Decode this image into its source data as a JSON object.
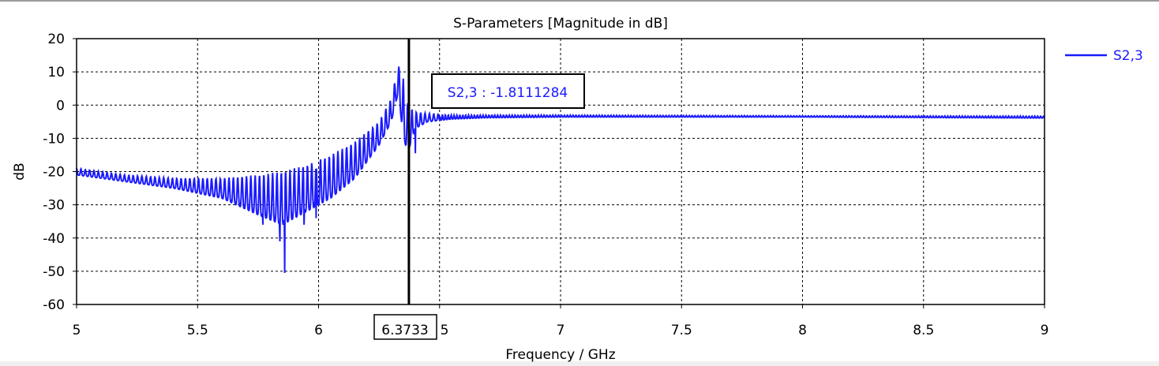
{
  "chart_data": {
    "type": "line",
    "title": "S-Parameters [Magnitude in dB]",
    "xlabel": "Frequency / GHz",
    "ylabel": "dB",
    "xlim": [
      5,
      9
    ],
    "ylim": [
      -60,
      20
    ],
    "xticks": [
      5,
      5.5,
      6,
      6.5,
      7,
      7.5,
      8,
      8.5,
      9
    ],
    "xtick_labels": [
      "5",
      "5.5",
      "6",
      "",
      "7",
      "7.5",
      "8",
      "8.5",
      "9"
    ],
    "yticks": [
      -60,
      -50,
      -40,
      -30,
      -20,
      -10,
      0,
      10,
      20
    ],
    "grid": true,
    "legend": {
      "position": "top-right",
      "entries": [
        "S2,3"
      ]
    },
    "series": [
      {
        "name": "S2,3",
        "color": "#1a1aff",
        "envelope_x": [
          5.0,
          5.2,
          5.4,
          5.6,
          5.75,
          5.85,
          5.95,
          6.05,
          6.15,
          6.25,
          6.3,
          6.33,
          6.35,
          6.37,
          6.4,
          6.45,
          6.55,
          6.7,
          7.0,
          8.0,
          9.0
        ],
        "upper": [
          -19,
          -21,
          -22,
          -22,
          -21,
          -20,
          -18,
          -15,
          -11,
          -5,
          2,
          12,
          8,
          0,
          -2,
          -2.5,
          -3,
          -3,
          -3,
          -3.2,
          -3.3
        ],
        "lower": [
          -21,
          -23,
          -25,
          -28,
          -33,
          -36,
          -32,
          -28,
          -22,
          -12,
          -5,
          4,
          -10,
          -14,
          -7,
          -5,
          -4.2,
          -3.8,
          -3.6,
          -3.6,
          -3.9
        ],
        "spikes": [
          {
            "x": 5.77,
            "y": -36
          },
          {
            "x": 5.84,
            "y": -41
          },
          {
            "x": 5.86,
            "y": -50.5
          },
          {
            "x": 5.94,
            "y": -36
          },
          {
            "x": 5.99,
            "y": -34
          },
          {
            "x": 6.4,
            "y": -14.5
          }
        ]
      }
    ],
    "marker": {
      "x": 6.3733,
      "label": "S2,3 : -1.8111284",
      "x_label": "6.3733"
    }
  }
}
